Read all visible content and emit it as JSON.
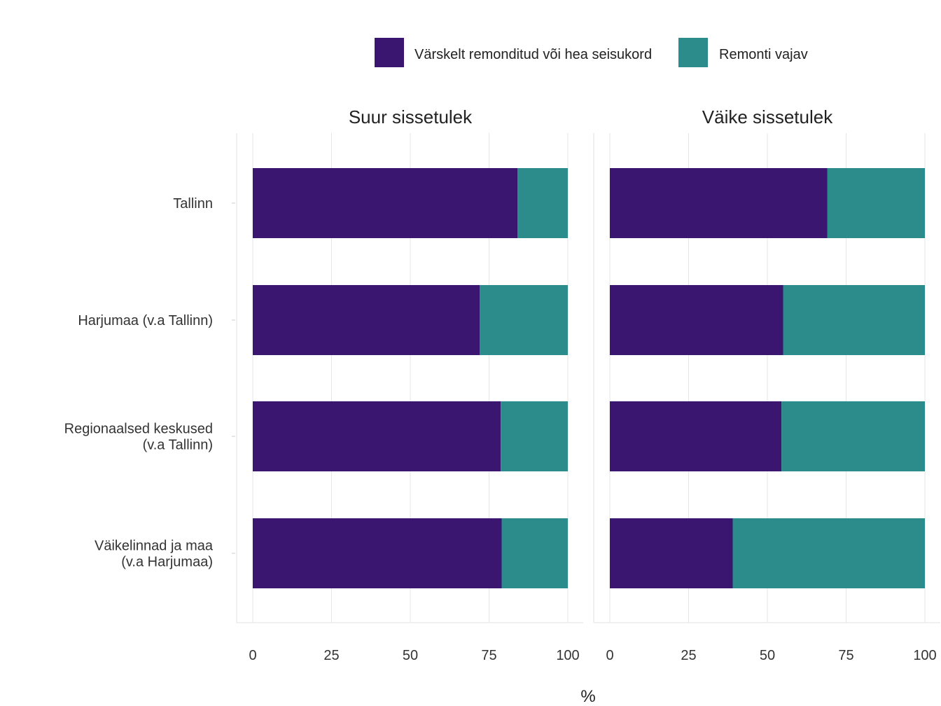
{
  "chart_data": {
    "type": "bar",
    "orientation": "horizontal",
    "stacked": true,
    "categories": [
      [
        "Tallinn"
      ],
      [
        "Harjumaa (v.a Tallinn)"
      ],
      [
        "Regionaalsed keskused",
        "(v.a Tallinn)"
      ],
      [
        "Väikelinnad ja maa",
        "(v.a Harjumaa)"
      ]
    ],
    "series_names": [
      "Värskelt remonditud või hea seisukord",
      "Remonti vajav"
    ],
    "series_colors": [
      "#3a1670",
      "#2c8c8c"
    ],
    "facets": [
      {
        "title": "Suur sissetulek",
        "series": [
          {
            "name": "Värskelt remonditud või hea seisukord",
            "values": [
              84,
              72,
              78.7,
              79
            ]
          },
          {
            "name": "Remonti vajav",
            "values": [
              16,
              28,
              21.3,
              21
            ]
          }
        ]
      },
      {
        "title": "Väike sissetulek",
        "series": [
          {
            "name": "Värskelt remonditud või hea seisukord",
            "values": [
              69,
              55,
              54.5,
              39
            ]
          },
          {
            "name": "Remonti vajav",
            "values": [
              31,
              45,
              45.5,
              61
            ]
          }
        ]
      }
    ],
    "xlim": [
      0,
      100
    ],
    "xticks": [
      "0",
      "25",
      "50",
      "75",
      "100"
    ],
    "xlabel": "%",
    "ylabel": "",
    "legend_position": "top",
    "grid": true
  }
}
